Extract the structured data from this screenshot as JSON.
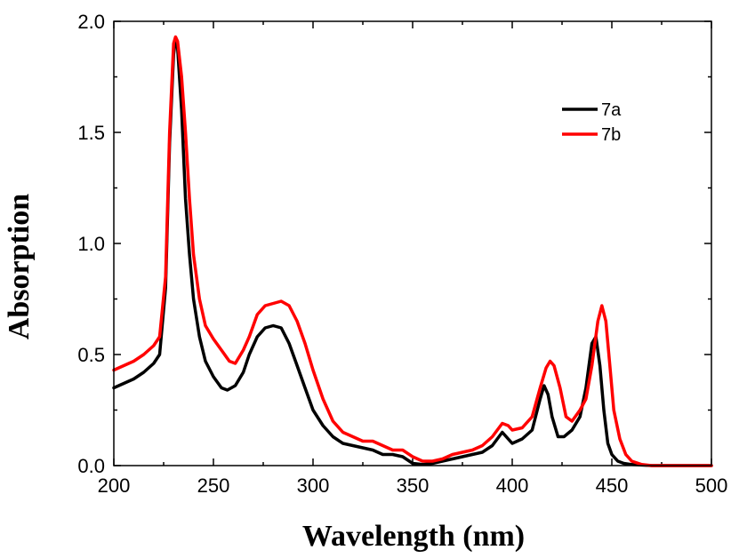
{
  "chart_data": {
    "type": "line",
    "xlabel": "Wavelength (nm)",
    "ylabel": "Absorption",
    "xlim": [
      200,
      500
    ],
    "ylim": [
      0.0,
      2.0
    ],
    "x_ticks": [
      200,
      250,
      300,
      350,
      400,
      450,
      500
    ],
    "x_tick_labels": [
      "200",
      "250",
      "300",
      "350",
      "400",
      "450",
      "500"
    ],
    "y_ticks": [
      0.0,
      0.5,
      1.0,
      1.5,
      2.0
    ],
    "y_tick_labels": [
      "0.0",
      "0.5",
      "1.0",
      "1.5",
      "2.0"
    ],
    "grid": false,
    "legend_position": "top-right",
    "series": [
      {
        "name": "7a",
        "color": "#000000",
        "points": [
          [
            200,
            0.35
          ],
          [
            205,
            0.37
          ],
          [
            210,
            0.39
          ],
          [
            215,
            0.42
          ],
          [
            220,
            0.46
          ],
          [
            223,
            0.5
          ],
          [
            226,
            0.8
          ],
          [
            228,
            1.45
          ],
          [
            230,
            1.85
          ],
          [
            231,
            1.92
          ],
          [
            232,
            1.88
          ],
          [
            234,
            1.6
          ],
          [
            236,
            1.2
          ],
          [
            238,
            0.95
          ],
          [
            240,
            0.75
          ],
          [
            243,
            0.58
          ],
          [
            246,
            0.47
          ],
          [
            250,
            0.4
          ],
          [
            254,
            0.35
          ],
          [
            257,
            0.34
          ],
          [
            261,
            0.36
          ],
          [
            265,
            0.42
          ],
          [
            268,
            0.5
          ],
          [
            272,
            0.58
          ],
          [
            276,
            0.62
          ],
          [
            280,
            0.63
          ],
          [
            284,
            0.62
          ],
          [
            288,
            0.55
          ],
          [
            292,
            0.45
          ],
          [
            296,
            0.35
          ],
          [
            300,
            0.25
          ],
          [
            305,
            0.18
          ],
          [
            310,
            0.13
          ],
          [
            315,
            0.1
          ],
          [
            320,
            0.09
          ],
          [
            325,
            0.08
          ],
          [
            330,
            0.07
          ],
          [
            335,
            0.05
          ],
          [
            340,
            0.05
          ],
          [
            345,
            0.04
          ],
          [
            350,
            0.01
          ],
          [
            355,
            0.005
          ],
          [
            360,
            0.01
          ],
          [
            365,
            0.02
          ],
          [
            370,
            0.03
          ],
          [
            375,
            0.04
          ],
          [
            380,
            0.05
          ],
          [
            385,
            0.06
          ],
          [
            390,
            0.09
          ],
          [
            395,
            0.15
          ],
          [
            398,
            0.12
          ],
          [
            400,
            0.1
          ],
          [
            405,
            0.12
          ],
          [
            410,
            0.16
          ],
          [
            414,
            0.3
          ],
          [
            416,
            0.36
          ],
          [
            418,
            0.32
          ],
          [
            420,
            0.22
          ],
          [
            423,
            0.13
          ],
          [
            426,
            0.13
          ],
          [
            430,
            0.16
          ],
          [
            434,
            0.22
          ],
          [
            437,
            0.35
          ],
          [
            440,
            0.55
          ],
          [
            442,
            0.58
          ],
          [
            444,
            0.45
          ],
          [
            446,
            0.25
          ],
          [
            448,
            0.1
          ],
          [
            450,
            0.05
          ],
          [
            453,
            0.02
          ],
          [
            456,
            0.01
          ],
          [
            460,
            0.005
          ],
          [
            470,
            0.0
          ],
          [
            480,
            0.0
          ],
          [
            490,
            0.0
          ],
          [
            500,
            0.0
          ]
        ]
      },
      {
        "name": "7b",
        "color": "#ff0000",
        "points": [
          [
            200,
            0.43
          ],
          [
            205,
            0.45
          ],
          [
            210,
            0.47
          ],
          [
            215,
            0.5
          ],
          [
            220,
            0.54
          ],
          [
            223,
            0.58
          ],
          [
            226,
            0.85
          ],
          [
            228,
            1.5
          ],
          [
            230,
            1.9
          ],
          [
            231,
            1.93
          ],
          [
            232,
            1.91
          ],
          [
            234,
            1.75
          ],
          [
            236,
            1.5
          ],
          [
            238,
            1.2
          ],
          [
            240,
            0.95
          ],
          [
            243,
            0.75
          ],
          [
            246,
            0.63
          ],
          [
            250,
            0.57
          ],
          [
            254,
            0.52
          ],
          [
            258,
            0.47
          ],
          [
            261,
            0.46
          ],
          [
            265,
            0.52
          ],
          [
            268,
            0.58
          ],
          [
            272,
            0.68
          ],
          [
            276,
            0.72
          ],
          [
            280,
            0.73
          ],
          [
            284,
            0.74
          ],
          [
            288,
            0.72
          ],
          [
            292,
            0.65
          ],
          [
            296,
            0.55
          ],
          [
            300,
            0.43
          ],
          [
            305,
            0.3
          ],
          [
            310,
            0.2
          ],
          [
            315,
            0.15
          ],
          [
            320,
            0.13
          ],
          [
            325,
            0.11
          ],
          [
            330,
            0.11
          ],
          [
            335,
            0.09
          ],
          [
            340,
            0.07
          ],
          [
            345,
            0.07
          ],
          [
            350,
            0.04
          ],
          [
            355,
            0.02
          ],
          [
            360,
            0.02
          ],
          [
            365,
            0.03
          ],
          [
            370,
            0.05
          ],
          [
            375,
            0.06
          ],
          [
            380,
            0.07
          ],
          [
            385,
            0.09
          ],
          [
            390,
            0.13
          ],
          [
            395,
            0.19
          ],
          [
            398,
            0.18
          ],
          [
            400,
            0.16
          ],
          [
            405,
            0.17
          ],
          [
            410,
            0.22
          ],
          [
            414,
            0.35
          ],
          [
            417,
            0.44
          ],
          [
            419,
            0.47
          ],
          [
            421,
            0.45
          ],
          [
            424,
            0.35
          ],
          [
            427,
            0.22
          ],
          [
            430,
            0.2
          ],
          [
            434,
            0.25
          ],
          [
            437,
            0.3
          ],
          [
            440,
            0.45
          ],
          [
            443,
            0.65
          ],
          [
            445,
            0.72
          ],
          [
            447,
            0.65
          ],
          [
            449,
            0.45
          ],
          [
            451,
            0.25
          ],
          [
            454,
            0.12
          ],
          [
            457,
            0.05
          ],
          [
            460,
            0.02
          ],
          [
            465,
            0.005
          ],
          [
            470,
            0.0
          ],
          [
            480,
            0.0
          ],
          [
            490,
            0.0
          ],
          [
            500,
            0.0
          ]
        ]
      }
    ]
  }
}
